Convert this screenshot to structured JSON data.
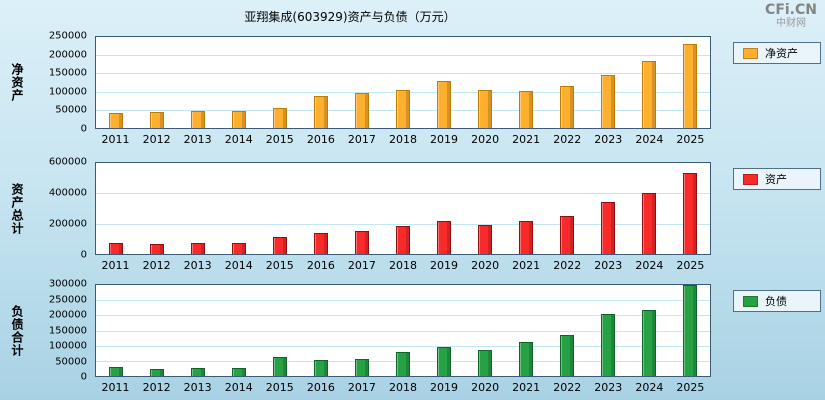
{
  "page": {
    "title": "亚翔集成(603929)资产与负债（万元）",
    "watermark": {
      "brand": "CFi.CN",
      "site": "中财网"
    }
  },
  "chart_data": [
    {
      "type": "bar",
      "axis_label": "净资产",
      "legend": "净资产",
      "color": "#FFAF2E",
      "border_color": "#BA7D05",
      "categories": [
        "2011",
        "2012",
        "2013",
        "2014",
        "2015",
        "2016",
        "2017",
        "2018",
        "2019",
        "2020",
        "2021",
        "2022",
        "2023",
        "2024",
        "2025"
      ],
      "values": [
        40000,
        43000,
        46000,
        48000,
        55000,
        87000,
        95000,
        105000,
        128000,
        105000,
        102000,
        115000,
        145000,
        185000,
        230000
      ],
      "ylim": [
        0,
        250000
      ],
      "ytick_step": 50000
    },
    {
      "type": "bar",
      "axis_label": "资产总计",
      "legend": "资产",
      "color": "#F92A2A",
      "border_color": "#8F1010",
      "categories": [
        "2011",
        "2012",
        "2013",
        "2014",
        "2015",
        "2016",
        "2017",
        "2018",
        "2019",
        "2020",
        "2021",
        "2022",
        "2023",
        "2024",
        "2025"
      ],
      "values": [
        70000,
        68000,
        75000,
        73000,
        115000,
        140000,
        150000,
        185000,
        220000,
        190000,
        215000,
        250000,
        345000,
        400000,
        535000
      ],
      "ylim": [
        0,
        600000
      ],
      "ytick_step": 200000
    },
    {
      "type": "bar",
      "axis_label": "负债合计",
      "legend": "负债",
      "color": "#26A144",
      "border_color": "#11632A",
      "categories": [
        "2011",
        "2012",
        "2013",
        "2014",
        "2015",
        "2016",
        "2017",
        "2018",
        "2019",
        "2020",
        "2021",
        "2022",
        "2023",
        "2024",
        "2025"
      ],
      "values": [
        30000,
        23000,
        28000,
        25000,
        62000,
        53000,
        57000,
        80000,
        95000,
        87000,
        112000,
        135000,
        203000,
        218000,
        300000
      ],
      "ylim": [
        0,
        300000
      ],
      "ytick_step": 50000
    }
  ]
}
